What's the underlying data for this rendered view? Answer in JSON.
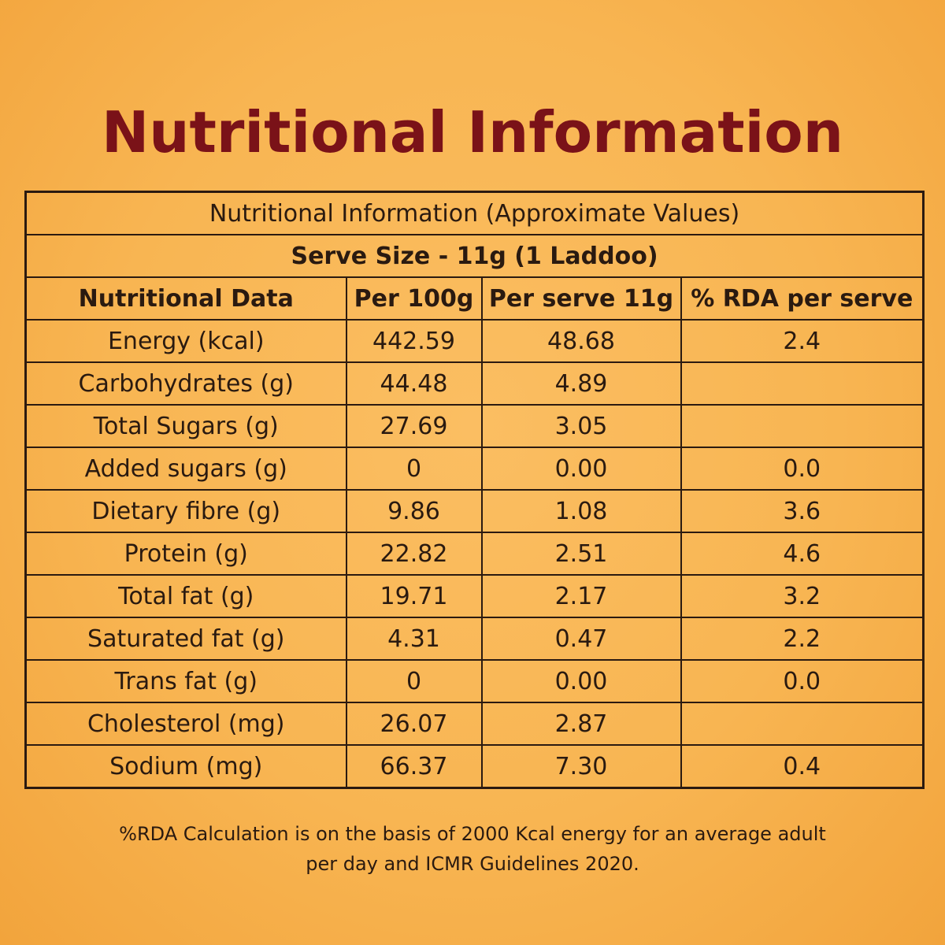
{
  "title": "Nutritional Information",
  "table": {
    "caption": "Nutritional Information (Approximate Values)",
    "serve_size": "Serve Size - 11g (1 Laddoo)",
    "columns": [
      "Nutritional Data",
      "Per 100g",
      "Per serve 11g",
      "% RDA per serve"
    ],
    "rows": [
      {
        "name": "Energy (kcal)",
        "per100": "442.59",
        "perserve": "48.68",
        "rda": "2.4"
      },
      {
        "name": "Carbohydrates (g)",
        "per100": "44.48",
        "perserve": "4.89",
        "rda": ""
      },
      {
        "name": "Total Sugars (g)",
        "per100": "27.69",
        "perserve": "3.05",
        "rda": ""
      },
      {
        "name": "Added sugars (g)",
        "per100": "0",
        "perserve": "0.00",
        "rda": "0.0"
      },
      {
        "name": "Dietary fibre (g)",
        "per100": "9.86",
        "perserve": "1.08",
        "rda": "3.6"
      },
      {
        "name": "Protein (g)",
        "per100": "22.82",
        "perserve": "2.51",
        "rda": "4.6"
      },
      {
        "name": "Total fat (g)",
        "per100": "19.71",
        "perserve": "2.17",
        "rda": "3.2"
      },
      {
        "name": "Saturated fat (g)",
        "per100": "4.31",
        "perserve": "0.47",
        "rda": "2.2"
      },
      {
        "name": "Trans fat (g)",
        "per100": "0",
        "perserve": "0.00",
        "rda": "0.0"
      },
      {
        "name": "Cholesterol (mg)",
        "per100": "26.07",
        "perserve": "2.87",
        "rda": ""
      },
      {
        "name": "Sodium (mg)",
        "per100": "66.37",
        "perserve": "7.30",
        "rda": "0.4"
      }
    ]
  },
  "footnote": {
    "line1": "%RDA Calculation is on the basis of 2000 Kcal energy for an average adult",
    "line2": "per day and ICMR Guidelines 2020."
  },
  "colors": {
    "background": "#f8b552",
    "title": "#7a1218",
    "text": "#2a1a10",
    "border": "#2b1a10"
  }
}
